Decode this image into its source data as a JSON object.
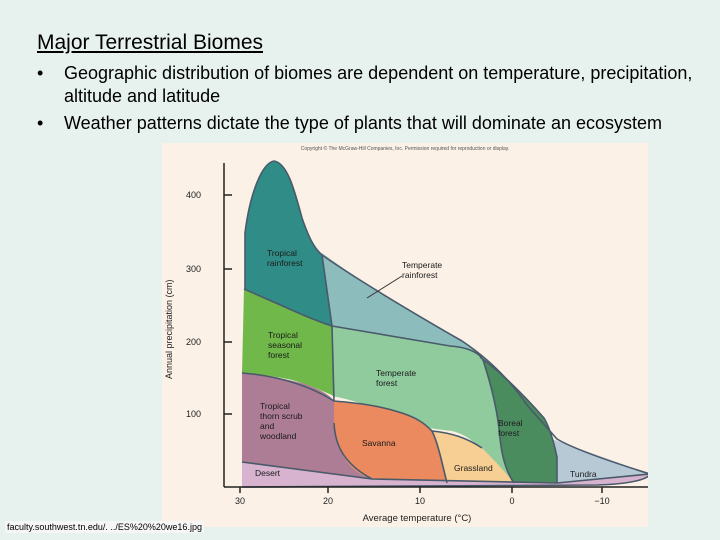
{
  "slide": {
    "title": "Major Terrestrial Biomes",
    "bullets": [
      {
        "marker": "•",
        "text": "Geographic distribution of biomes are dependent on temperature, precipitation, altitude and latitude"
      },
      {
        "marker": "•",
        "text": "Weather patterns dictate the type of plants that will dominate an ecosystem"
      }
    ],
    "source": "faculty.southwest.tn.edu/. ../ES%20%20we16.jpg"
  },
  "figure": {
    "copyright": "Copyright © The McGraw-Hill Companies, Inc. Permission required for reproduction or display.",
    "ylabel": "Annual precipitation (cm)",
    "xlabel": "Average temperature (°C)",
    "y_ticks": [
      "400",
      "300",
      "200",
      "100"
    ],
    "x_ticks": [
      "30",
      "20",
      "10",
      "0",
      "−10"
    ],
    "biomes": {
      "tropical_rainforest": [
        "Tropical",
        "rainforest"
      ],
      "temperate_rainforest": [
        "Temperate",
        "rainforest"
      ],
      "tropical_seasonal_forest": [
        "Tropical",
        "seasonal",
        "forest"
      ],
      "temperate_forest": [
        "Temperate",
        "forest"
      ],
      "tropical_thorn_scrub": [
        "Tropical",
        "thorn scrub",
        "and",
        "woodland"
      ],
      "savanna": [
        "Savanna"
      ],
      "boreal_forest": [
        "Boreal",
        "forest"
      ],
      "grassland": [
        "Grassland"
      ],
      "desert": [
        "Desert"
      ],
      "tundra": [
        "Tundra"
      ]
    },
    "colors": {
      "tropical_rainforest": "#2f8c86",
      "temperate_rainforest": "#8dbcbc",
      "tropical_seasonal_forest": "#6fb849",
      "temperate_forest": "#8fcb9d",
      "tropical_thorn_scrub": "#ad7c95",
      "savanna": "#ea8a5e",
      "boreal_forest": "#4b8c5f",
      "grassland": "#f7cf94",
      "desert": "#d7b3cf",
      "tundra": "#b8c9d6",
      "background": "#fbf1e6"
    }
  }
}
